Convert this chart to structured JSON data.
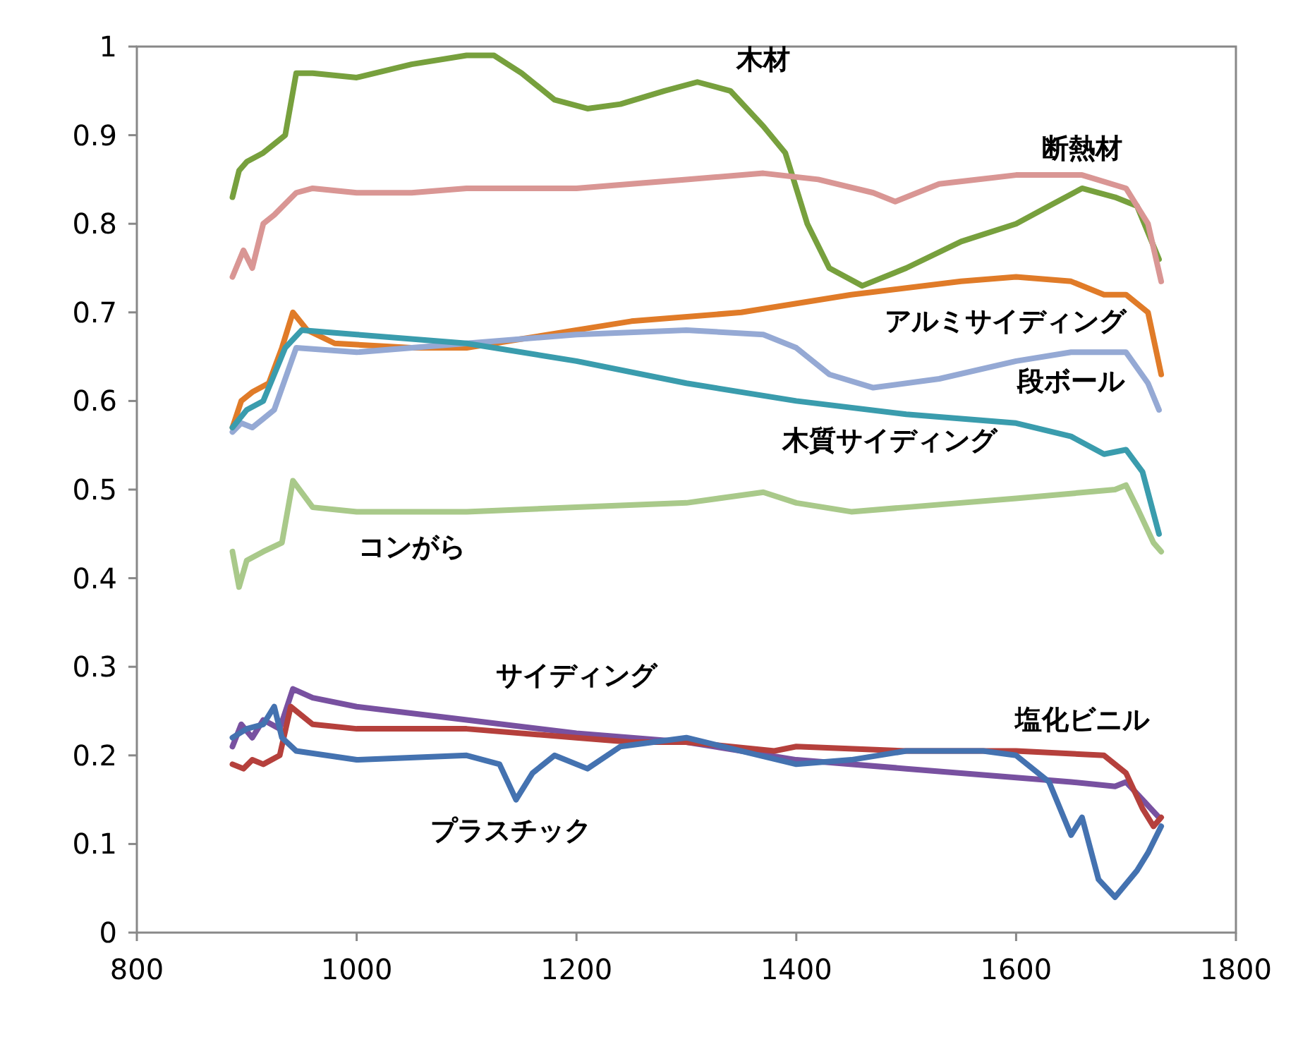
{
  "chart_data": {
    "type": "line",
    "xlim": [
      800,
      1800
    ],
    "ylim": [
      0,
      1
    ],
    "xticks": [
      800,
      1000,
      1200,
      1400,
      1600,
      1800
    ],
    "yticks": [
      0,
      {
        "value": 0.1,
        "label": "0.1"
      },
      {
        "value": 0.2,
        "label": "0.2"
      },
      {
        "value": 0.3,
        "label": "0.3"
      },
      {
        "value": 0.4,
        "label": "0.4"
      },
      {
        "value": 0.5,
        "label": "0.5"
      },
      {
        "value": 0.6,
        "label": "0.6"
      },
      {
        "value": 0.7,
        "label": "0.7"
      },
      {
        "value": 0.8,
        "label": "0.8"
      },
      {
        "value": 0.9,
        "label": "0.9"
      },
      1
    ],
    "grid": false,
    "legend": false,
    "marker": "none",
    "line_style": "solid",
    "series": [
      {
        "name": "木材",
        "color": "#77a03d",
        "x": [
          887,
          893,
          900,
          915,
          925,
          935,
          945,
          960,
          1000,
          1050,
          1100,
          1125,
          1150,
          1180,
          1210,
          1240,
          1280,
          1310,
          1340,
          1370,
          1390,
          1410,
          1430,
          1460,
          1500,
          1550,
          1600,
          1630,
          1660,
          1690,
          1710,
          1730
        ],
        "values": [
          0.83,
          0.86,
          0.87,
          0.88,
          0.89,
          0.9,
          0.97,
          0.97,
          0.965,
          0.98,
          0.99,
          0.99,
          0.97,
          0.94,
          0.93,
          0.935,
          0.95,
          0.96,
          0.95,
          0.91,
          0.88,
          0.8,
          0.75,
          0.73,
          0.75,
          0.78,
          0.8,
          0.82,
          0.84,
          0.83,
          0.82,
          0.76
        ]
      },
      {
        "name": "断熱材",
        "color": "#d99694",
        "x": [
          887,
          897,
          905,
          915,
          925,
          945,
          960,
          1000,
          1050,
          1100,
          1200,
          1300,
          1370,
          1420,
          1470,
          1490,
          1530,
          1600,
          1660,
          1700,
          1720,
          1732
        ],
        "values": [
          0.74,
          0.77,
          0.75,
          0.8,
          0.81,
          0.835,
          0.84,
          0.835,
          0.835,
          0.84,
          0.84,
          0.85,
          0.857,
          0.85,
          0.835,
          0.825,
          0.845,
          0.855,
          0.855,
          0.84,
          0.8,
          0.735
        ]
      },
      {
        "name": "アルミサイディング",
        "color": "#e07b28",
        "x": [
          887,
          895,
          905,
          920,
          932,
          942,
          955,
          980,
          1050,
          1100,
          1150,
          1250,
          1350,
          1400,
          1450,
          1550,
          1600,
          1650,
          1680,
          1700,
          1720,
          1732
        ],
        "values": [
          0.57,
          0.6,
          0.61,
          0.62,
          0.66,
          0.7,
          0.68,
          0.665,
          0.66,
          0.66,
          0.67,
          0.69,
          0.7,
          0.71,
          0.72,
          0.735,
          0.74,
          0.735,
          0.72,
          0.72,
          0.7,
          0.63
        ]
      },
      {
        "name": "段ボール",
        "color": "#95a9d4",
        "x": [
          887,
          895,
          905,
          915,
          925,
          945,
          1000,
          1100,
          1200,
          1300,
          1370,
          1400,
          1430,
          1470,
          1530,
          1600,
          1650,
          1700,
          1720,
          1730
        ],
        "values": [
          0.565,
          0.575,
          0.57,
          0.58,
          0.59,
          0.66,
          0.655,
          0.665,
          0.675,
          0.68,
          0.675,
          0.66,
          0.63,
          0.615,
          0.625,
          0.645,
          0.655,
          0.655,
          0.62,
          0.59
        ]
      },
      {
        "name": "木質サイディング",
        "color": "#3a9cad",
        "x": [
          887,
          900,
          915,
          935,
          950,
          1000,
          1100,
          1200,
          1300,
          1400,
          1500,
          1600,
          1650,
          1680,
          1700,
          1715,
          1730
        ],
        "values": [
          0.57,
          0.59,
          0.6,
          0.66,
          0.68,
          0.675,
          0.665,
          0.645,
          0.62,
          0.6,
          0.585,
          0.575,
          0.56,
          0.54,
          0.545,
          0.52,
          0.45
        ]
      },
      {
        "name": "コンがら",
        "color": "#a9c98a",
        "x": [
          887,
          893,
          900,
          915,
          932,
          942,
          960,
          1000,
          1100,
          1200,
          1300,
          1370,
          1400,
          1450,
          1500,
          1600,
          1690,
          1700,
          1710,
          1725,
          1732
        ],
        "values": [
          0.43,
          0.39,
          0.42,
          0.43,
          0.44,
          0.51,
          0.48,
          0.475,
          0.475,
          0.48,
          0.485,
          0.497,
          0.485,
          0.475,
          0.48,
          0.49,
          0.5,
          0.505,
          0.48,
          0.44,
          0.43
        ]
      },
      {
        "name": "サイディング",
        "color": "#7851a0",
        "x": [
          887,
          895,
          905,
          915,
          930,
          942,
          960,
          1000,
          1100,
          1200,
          1300,
          1400,
          1500,
          1600,
          1650,
          1690,
          1700,
          1715,
          1730
        ],
        "values": [
          0.21,
          0.235,
          0.22,
          0.24,
          0.23,
          0.275,
          0.265,
          0.255,
          0.24,
          0.225,
          0.215,
          0.195,
          0.185,
          0.175,
          0.17,
          0.165,
          0.17,
          0.15,
          0.13
        ]
      },
      {
        "name": "塩化ビニル",
        "color": "#b5403c",
        "x": [
          887,
          897,
          905,
          915,
          930,
          940,
          960,
          1000,
          1100,
          1200,
          1250,
          1300,
          1380,
          1400,
          1500,
          1600,
          1680,
          1700,
          1715,
          1725,
          1732
        ],
        "values": [
          0.19,
          0.185,
          0.195,
          0.19,
          0.2,
          0.255,
          0.235,
          0.23,
          0.23,
          0.22,
          0.215,
          0.215,
          0.205,
          0.21,
          0.205,
          0.205,
          0.2,
          0.18,
          0.14,
          0.12,
          0.13
        ]
      },
      {
        "name": "プラスチック",
        "color": "#4472b0",
        "x": [
          887,
          900,
          915,
          925,
          932,
          945,
          1000,
          1100,
          1130,
          1145,
          1160,
          1180,
          1210,
          1240,
          1300,
          1350,
          1400,
          1450,
          1500,
          1570,
          1600,
          1630,
          1650,
          1660,
          1675,
          1690,
          1710,
          1720,
          1732
        ],
        "values": [
          0.22,
          0.23,
          0.235,
          0.255,
          0.22,
          0.205,
          0.195,
          0.2,
          0.19,
          0.15,
          0.18,
          0.2,
          0.185,
          0.21,
          0.22,
          0.205,
          0.19,
          0.195,
          0.205,
          0.205,
          0.2,
          0.17,
          0.11,
          0.13,
          0.06,
          0.04,
          0.07,
          0.09,
          0.12
        ]
      }
    ]
  }
}
